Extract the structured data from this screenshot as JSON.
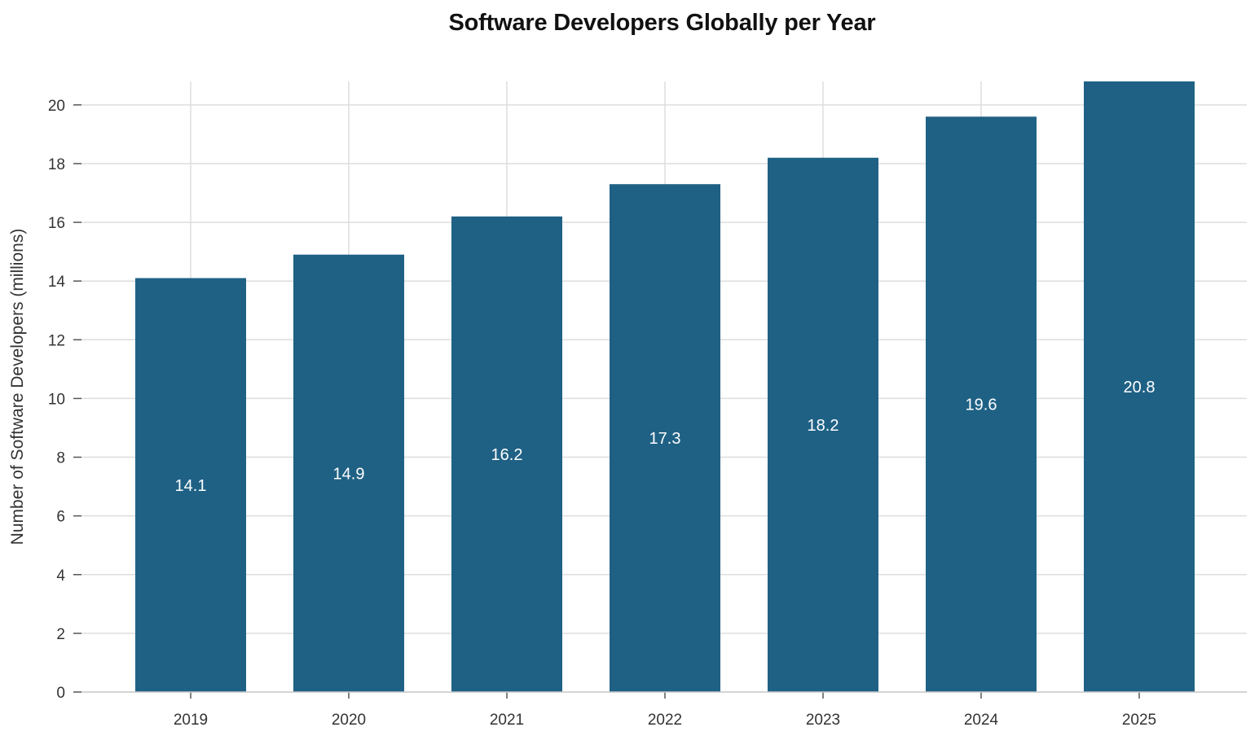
{
  "chart_data": {
    "type": "bar",
    "title": "Software Developers Globally per Year",
    "xlabel": "",
    "ylabel": "Number of Software Developers (millions)",
    "categories": [
      "2019",
      "2020",
      "2021",
      "2022",
      "2023",
      "2024",
      "2025"
    ],
    "values": [
      14.1,
      14.9,
      16.2,
      17.3,
      18.2,
      19.6,
      20.8
    ],
    "data_labels": [
      "14.1",
      "14.9",
      "16.2",
      "17.3",
      "18.2",
      "19.6",
      "20.8"
    ],
    "y_ticks": [
      0,
      2,
      4,
      6,
      8,
      10,
      12,
      14,
      16,
      18,
      20
    ],
    "ylim": [
      0,
      20.8
    ],
    "grid": true,
    "legend": "none",
    "colors": {
      "bar": "#1f6185",
      "grid": "#dddddd",
      "label": "#ffffff"
    }
  }
}
